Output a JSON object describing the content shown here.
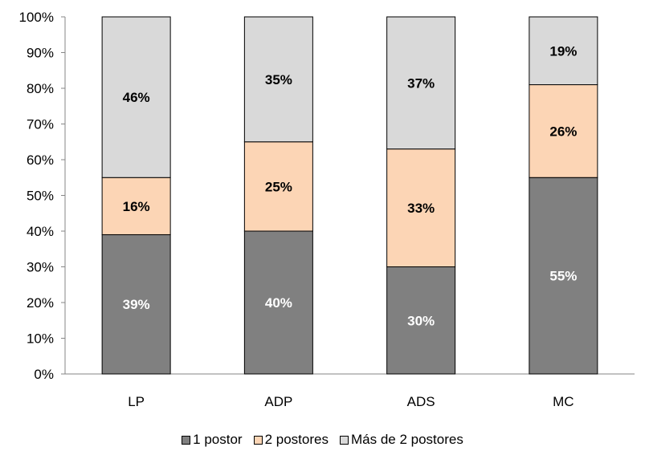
{
  "chart_data": {
    "type": "bar",
    "stacked": true,
    "categories": [
      "LP",
      "ADP",
      "ADS",
      "MC"
    ],
    "series": [
      {
        "name": "1 postor",
        "values": [
          39,
          40,
          30,
          55
        ],
        "labels": [
          "39%",
          "40%",
          "30%",
          "55%"
        ],
        "color": "#808080",
        "label_color": "#ffffff"
      },
      {
        "name": "2 postores",
        "values": [
          16,
          25,
          33,
          26
        ],
        "labels": [
          "16%",
          "25%",
          "33%",
          "26%"
        ],
        "color": "#fcd5b5",
        "label_color": "#000000"
      },
      {
        "name": "Más de 2 postores",
        "values": [
          46,
          35,
          37,
          19
        ],
        "labels": [
          "46%",
          "35%",
          "37%",
          "19%"
        ],
        "color": "#d9d9d9",
        "label_color": "#000000"
      }
    ],
    "ylim": [
      0,
      100
    ],
    "yticks": [
      "0%",
      "10%",
      "20%",
      "30%",
      "40%",
      "50%",
      "60%",
      "70%",
      "80%",
      "90%",
      "100%"
    ],
    "grid": false,
    "legend_position": "bottom",
    "title": "",
    "xlabel": "",
    "ylabel": ""
  }
}
